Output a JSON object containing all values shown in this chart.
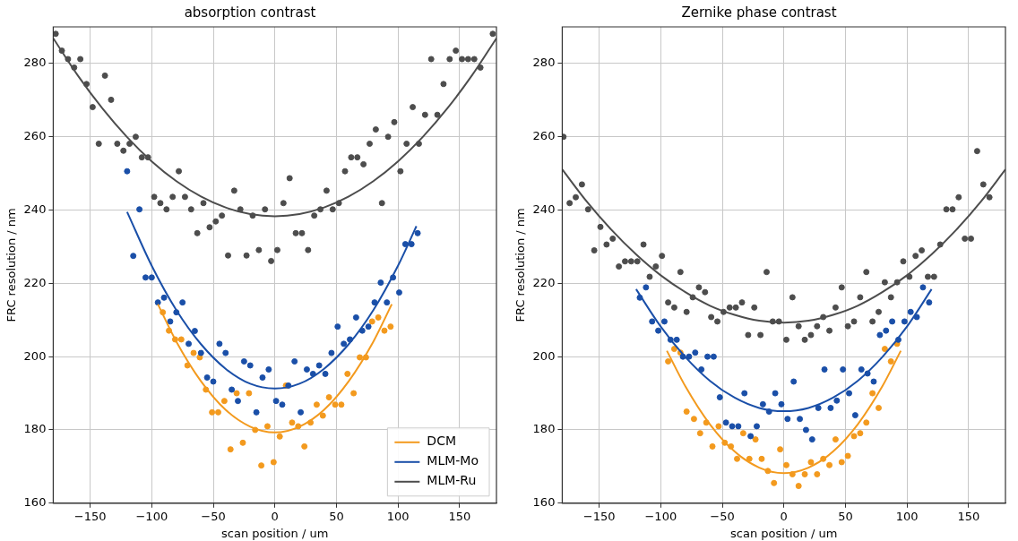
{
  "chart_data": [
    {
      "type": "scatter",
      "title": "absorption contrast",
      "xlabel": "scan position / um",
      "ylabel": "FRC resolution / nm",
      "xlim": [
        -180,
        180
      ],
      "ylim": [
        160,
        290
      ],
      "xticks": [
        {
          "value": -150,
          "label": "−150"
        },
        {
          "value": -100,
          "label": "−100"
        },
        {
          "value": -50,
          "label": "−50"
        },
        0,
        50,
        100,
        150
      ],
      "yticks": [
        160,
        180,
        200,
        220,
        240,
        260,
        280
      ],
      "grid": true,
      "legend": "bottom right",
      "series": [
        {
          "type": "scatter",
          "marker": "circle",
          "color": "#4d4d4d",
          "x": [
            -178,
            -173,
            -168,
            -163,
            -158,
            -153,
            -148,
            -143,
            -138,
            -133,
            -128,
            -123,
            -118,
            -113,
            -108,
            -103,
            -98,
            -93,
            -88,
            -83,
            -78,
            -73,
            -68,
            -63,
            -58,
            -53,
            -48,
            -43,
            -38,
            -33,
            -28,
            -23,
            -18,
            -13,
            -8,
            -3,
            2,
            7,
            12,
            17,
            22,
            27,
            32,
            37,
            42,
            47,
            52,
            57,
            62,
            67,
            72,
            77,
            82,
            87,
            92,
            97,
            102,
            107,
            112,
            117,
            122,
            127,
            132,
            137,
            142,
            147,
            152,
            157,
            162,
            167,
            177
          ],
          "values": [
            288.1,
            283.5,
            281.2,
            278.9,
            281.2,
            274.4,
            268.1,
            258.1,
            276.7,
            270.1,
            258.1,
            256.2,
            258.1,
            260,
            254.4,
            254.4,
            243.6,
            241.9,
            240.2,
            243.6,
            250.6,
            243.6,
            240.2,
            233.7,
            241.9,
            235.3,
            236.9,
            238.5,
            227.6,
            245.3,
            240.2,
            227.6,
            238.5,
            229.1,
            240.2,
            226.1,
            229.1,
            241.9,
            248.7,
            233.7,
            233.7,
            229.1,
            238.5,
            240.2,
            245.3,
            240.2,
            241.9,
            250.6,
            254.4,
            254.4,
            252.5,
            258.1,
            262,
            241.9,
            260,
            264,
            250.6,
            258.1,
            268.1,
            258.1,
            266,
            281.2,
            266,
            274.4,
            281.2,
            283.5,
            281.2,
            281.2,
            281.2,
            278.9,
            288.1
          ]
        },
        {
          "type": "scatter",
          "marker": "circle",
          "color": "#1a4fa8",
          "x": [
            -120,
            -115,
            -110,
            -105,
            -100,
            -95,
            -90,
            -85,
            -80,
            -75,
            -70,
            -65,
            -60,
            -55,
            -50,
            -45,
            -40,
            -35,
            -30,
            -25,
            -20,
            -15,
            -10,
            -5,
            1,
            6,
            11,
            16,
            21,
            26,
            31,
            36,
            41,
            46,
            51,
            56,
            61,
            66,
            71,
            76,
            81,
            86,
            91,
            96,
            101,
            106,
            111,
            116
          ],
          "values": [
            250.6,
            227.5,
            240.2,
            221.6,
            221.6,
            214.8,
            216.1,
            209.6,
            212.1,
            214.8,
            203.5,
            207,
            201,
            194.3,
            193.2,
            203.5,
            201,
            191,
            187.9,
            198.7,
            197.6,
            184.8,
            194.3,
            196.5,
            187.9,
            186.9,
            192.1,
            198.7,
            184.8,
            196.5,
            195.3,
            197.6,
            195.3,
            201,
            208.2,
            203.5,
            204.7,
            210.7,
            207.1,
            208.2,
            214.8,
            220.2,
            214.8,
            221.6,
            217.5,
            230.7,
            230.7,
            233.7
          ]
        },
        {
          "type": "scatter",
          "marker": "circle",
          "color": "#f39a1e",
          "x": [
            -91,
            -86,
            -81,
            -76,
            -71,
            -66,
            -61,
            -56,
            -51,
            -46,
            -41,
            -36,
            -31,
            -26,
            -21,
            -16,
            -11,
            -6,
            -1,
            4,
            9,
            14,
            19,
            24,
            29,
            34,
            39,
            44,
            49,
            54,
            59,
            64,
            69,
            74,
            79,
            84,
            89,
            94
          ],
          "values": [
            212.1,
            207.1,
            204.7,
            204.7,
            197.6,
            201,
            199.8,
            191,
            184.8,
            184.8,
            187.9,
            174.7,
            190,
            176.5,
            190,
            180,
            170.3,
            181,
            171.2,
            178.2,
            192.1,
            182,
            181,
            175.5,
            182,
            186.9,
            183.9,
            188.9,
            186.9,
            186.9,
            195.3,
            190,
            199.8,
            199.8,
            209.6,
            210.7,
            207.1,
            208.2
          ]
        },
        {
          "type": "line",
          "name": "DCM",
          "color": "#f39a1e",
          "x": [
            -95,
            -80,
            -60,
            -40,
            -20,
            0,
            20,
            40,
            60,
            80,
            95
          ],
          "values": [
            214.3,
            204.1,
            193.3,
            185.5,
            180.9,
            179.3,
            180.9,
            185.5,
            193.3,
            204.1,
            214.3
          ]
        },
        {
          "type": "line",
          "name": "MLM-Mo",
          "color": "#1a4fa8",
          "x": [
            -120,
            -100,
            -80,
            -60,
            -40,
            -20,
            0,
            20,
            40,
            60,
            80,
            100,
            115
          ],
          "values": [
            239.5,
            224.8,
            212.7,
            203.4,
            196.7,
            192.6,
            191.3,
            192.6,
            196.7,
            203.4,
            212.7,
            224.8,
            235.6
          ]
        },
        {
          "type": "line",
          "name": "MLM-Ru",
          "color": "#4d4d4d",
          "x": [
            -180,
            -160,
            -140,
            -120,
            -100,
            -80,
            -60,
            -40,
            -20,
            0,
            20,
            40,
            60,
            80,
            100,
            120,
            140,
            160,
            180
          ],
          "values": [
            286.9,
            276.7,
            267.7,
            259.9,
            253.3,
            247.9,
            243.7,
            240.7,
            238.9,
            238.3,
            238.9,
            240.7,
            243.7,
            247.9,
            253.3,
            259.9,
            267.7,
            276.7,
            286.9
          ]
        }
      ]
    },
    {
      "type": "scatter",
      "title": "Zernike phase contrast",
      "xlabel": "scan position / um",
      "ylabel": "FRC resolution / nm",
      "xlim": [
        -180,
        180
      ],
      "ylim": [
        160,
        290
      ],
      "xticks": [
        {
          "value": -150,
          "label": "−150"
        },
        {
          "value": -100,
          "label": "−100"
        },
        {
          "value": -50,
          "label": "−50"
        },
        0,
        50,
        100,
        150
      ],
      "yticks": [
        160,
        180,
        200,
        220,
        240,
        260,
        280
      ],
      "grid": true,
      "series": [
        {
          "type": "scatter",
          "marker": "circle",
          "color": "#4d4d4d",
          "x": [
            -179,
            -174,
            -169,
            -164,
            -159,
            -154,
            -149,
            -144,
            -139,
            -134,
            -129,
            -124,
            -119,
            -114,
            -109,
            -104,
            -99,
            -94,
            -89,
            -84,
            -79,
            -74,
            -69,
            -64,
            -59,
            -54,
            -49,
            -44,
            -39,
            -34,
            -29,
            -24,
            -19,
            -14,
            -9,
            -4,
            2,
            7,
            12,
            17,
            22,
            27,
            32,
            37,
            42,
            47,
            52,
            57,
            62,
            67,
            72,
            77,
            82,
            87,
            92,
            97,
            102,
            107,
            112,
            117,
            122,
            127,
            132,
            137,
            142,
            147,
            152,
            157,
            162,
            167
          ],
          "values": [
            260,
            241.9,
            243.5,
            247,
            240.2,
            229,
            235.4,
            230.6,
            232.2,
            224.6,
            226,
            226,
            226,
            230.6,
            221.8,
            224.6,
            227.5,
            214.8,
            213.4,
            223.1,
            212.2,
            216.2,
            218.9,
            217.6,
            210.8,
            209.6,
            212.2,
            213.4,
            213.4,
            214.8,
            205.9,
            213.4,
            205.9,
            223.1,
            209.6,
            209.6,
            204.6,
            216.2,
            208.3,
            204.6,
            205.9,
            208.3,
            210.8,
            207.1,
            213.4,
            218.9,
            208.3,
            209.6,
            216.2,
            223.1,
            209.6,
            212.2,
            220.3,
            216.2,
            220.3,
            226,
            221.8,
            227.5,
            229,
            221.8,
            221.8,
            230.6,
            240.2,
            240.2,
            243.5,
            232.2,
            232.2,
            256.1,
            247,
            243.5
          ]
        },
        {
          "type": "scatter",
          "marker": "circle",
          "color": "#1a4fa8",
          "x": [
            -117,
            -112,
            -107,
            -102,
            -97,
            -92,
            -87,
            -82,
            -77,
            -72,
            -67,
            -62,
            -57,
            -52,
            -47,
            -42,
            -37,
            -32,
            -27,
            -22,
            -17,
            -12,
            -7,
            -2,
            3,
            8,
            13,
            18,
            23,
            28,
            33,
            38,
            43,
            48,
            53,
            58,
            63,
            68,
            73,
            78,
            83,
            88,
            93,
            98,
            103,
            108,
            113,
            118
          ],
          "values": [
            216.1,
            218.9,
            209.6,
            207.1,
            209.6,
            204.6,
            204.6,
            200,
            200,
            201.1,
            196.5,
            200,
            200,
            188.9,
            182,
            181,
            181,
            190,
            178.3,
            181,
            187,
            185,
            190,
            187,
            183,
            193.2,
            183,
            180,
            177.4,
            186,
            196.5,
            186,
            188,
            196.5,
            190,
            184,
            196.5,
            195.4,
            193.2,
            205.9,
            207.1,
            209.6,
            204.6,
            209.6,
            212.2,
            210.8,
            218.9,
            214.8
          ]
        },
        {
          "type": "scatter",
          "marker": "circle",
          "color": "#f39a1e",
          "x": [
            -94,
            -89,
            -84,
            -79,
            -73,
            -68,
            -63,
            -58,
            -53,
            -48,
            -43,
            -38,
            -33,
            -28,
            -23,
            -18,
            -13,
            -8,
            -3,
            2,
            7,
            12,
            17,
            22,
            27,
            32,
            37,
            42,
            47,
            52,
            57,
            62,
            67,
            72,
            77,
            82,
            87,
            92
          ],
          "values": [
            198.7,
            202.1,
            201.1,
            185,
            183,
            179.1,
            182,
            175.5,
            181,
            176.5,
            175.5,
            172.1,
            179.1,
            172.1,
            177.4,
            172.1,
            168.8,
            165.5,
            174.7,
            170.4,
            167.9,
            164.7,
            167.9,
            171.2,
            167.9,
            172.1,
            170.4,
            177.4,
            171.2,
            172.9,
            178.3,
            179.1,
            182,
            190,
            186,
            202.1,
            198.7,
            203.5
          ]
        },
        {
          "type": "line",
          "color": "#f39a1e",
          "x": [
            -95,
            -80,
            -60,
            -40,
            -20,
            0,
            20,
            40,
            60,
            80,
            95
          ],
          "values": [
            201.6,
            191.9,
            181.5,
            174.1,
            169.7,
            168.2,
            169.7,
            174.1,
            181.5,
            191.9,
            201.6
          ]
        },
        {
          "type": "line",
          "color": "#1a4fa8",
          "x": [
            -120,
            -100,
            -80,
            -60,
            -40,
            -20,
            0,
            20,
            40,
            60,
            80,
            100,
            120
          ],
          "values": [
            218.4,
            208.2,
            199.9,
            193.4,
            188.8,
            186,
            185.1,
            186,
            188.8,
            193.4,
            199.9,
            208.2,
            218.4
          ]
        },
        {
          "type": "line",
          "color": "#4d4d4d",
          "x": [
            -180,
            -160,
            -140,
            -120,
            -100,
            -80,
            -60,
            -40,
            -20,
            0,
            20,
            40,
            60,
            80,
            100,
            120,
            140,
            160,
            180
          ],
          "values": [
            251.1,
            242.3,
            234.6,
            227.9,
            222.2,
            217.6,
            213.9,
            211.4,
            209.8,
            209.3,
            209.8,
            211.4,
            213.9,
            217.6,
            222.2,
            227.9,
            234.6,
            242.3,
            251.1
          ]
        }
      ]
    }
  ]
}
